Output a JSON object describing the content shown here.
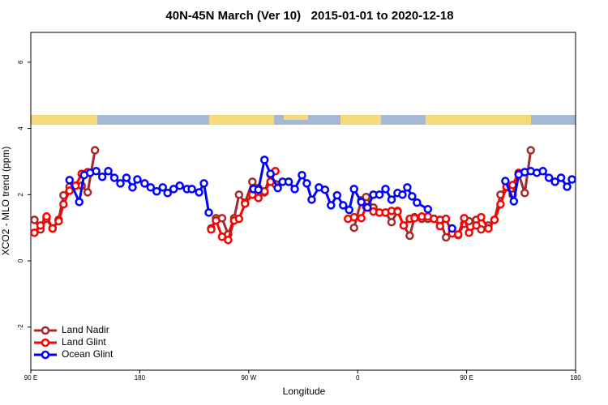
{
  "chart_data": {
    "type": "line",
    "title": "40N-45N March (Ver 10)   2015-01-01 to 2020-12-18",
    "x_label": "Longitude",
    "y_label": "XCO2 - MLO trend (ppm)",
    "xlim": [
      90,
      540
    ],
    "xticks": [
      {
        "value": 90,
        "label": "90 E"
      },
      {
        "value": 180,
        "label": "180"
      },
      {
        "value": 270,
        "label": "90 W"
      },
      {
        "value": 360,
        "label": "0"
      },
      {
        "value": 450,
        "label": "90 E"
      },
      {
        "value": 540,
        "label": "180"
      }
    ],
    "ylim": [
      -3.3,
      6.9
    ],
    "yticks": [
      -2,
      0,
      2,
      4,
      6
    ],
    "legend": "bottom-left",
    "series": [
      {
        "name": "Land Nadir",
        "color": "#a52a2a",
        "x": [
          93,
          98,
          103,
          108,
          113,
          117,
          122,
          127,
          132,
          137,
          143,
          190,
          239,
          243,
          248,
          253,
          258,
          262,
          267,
          273,
          278,
          283,
          288,
          292,
          320,
          357,
          363,
          367,
          373,
          378,
          383,
          388,
          393,
          398,
          403,
          407,
          413,
          418,
          423,
          428,
          433,
          438,
          443,
          448,
          452,
          458,
          462,
          468,
          473,
          478,
          483,
          488,
          493,
          498,
          503
        ],
        "values": [
          1.24,
          0.95,
          1.27,
          0.98,
          1.24,
          1.98,
          2.24,
          2.27,
          2.27,
          2.07,
          3.34,
          null,
          0.98,
          1.29,
          1.29,
          0.8,
          1.29,
          2.0,
          1.76,
          2.39,
          2.2,
          2.07,
          2.61,
          2.32,
          null,
          1.0,
          1.83,
          1.93,
          1.61,
          1.46,
          1.46,
          1.17,
          1.51,
          1.07,
          0.76,
          1.32,
          1.27,
          1.27,
          1.27,
          1.24,
          0.71,
          0.85,
          0.78,
          1.12,
          1.2,
          1.24,
          0.95,
          1.07,
          1.24,
          2.0,
          2.22,
          2.0,
          2.63,
          2.05,
          3.34
        ]
      },
      {
        "name": "Land Glint",
        "color": "#ff0000",
        "x": [
          93,
          98,
          103,
          108,
          113,
          117,
          122,
          127,
          132,
          137,
          145,
          239,
          243,
          248,
          253,
          258,
          262,
          267,
          273,
          278,
          283,
          288,
          292,
          320,
          352,
          357,
          363,
          367,
          373,
          378,
          383,
          388,
          393,
          398,
          403,
          407,
          413,
          418,
          423,
          428,
          433,
          438,
          443,
          448,
          452,
          458,
          462,
          468,
          473,
          478,
          483,
          488,
          493,
          498
        ],
        "values": [
          0.85,
          1.07,
          1.34,
          0.98,
          1.2,
          1.71,
          2.12,
          2.27,
          2.63,
          2.68,
          null,
          0.95,
          1.22,
          0.73,
          0.63,
          1.22,
          1.27,
          1.73,
          2.0,
          1.9,
          2.1,
          2.39,
          2.71,
          null,
          1.27,
          1.32,
          1.29,
          1.63,
          1.49,
          1.46,
          1.46,
          1.51,
          1.49,
          1.07,
          1.27,
          1.29,
          1.34,
          1.34,
          1.27,
          1.05,
          1.27,
          0.83,
          0.8,
          1.29,
          0.85,
          1.07,
          1.32,
          0.98,
          1.24,
          1.71,
          2.24,
          2.29,
          2.66,
          2.68
        ]
      },
      {
        "name": "Ocean Glint",
        "color": "#0000ff",
        "x": [
          122,
          130,
          134,
          139,
          144,
          149,
          154,
          159,
          164,
          169,
          174,
          178,
          184,
          189,
          194,
          199,
          203,
          208,
          213,
          219,
          223,
          229,
          233,
          237,
          255,
          274,
          278,
          283,
          288,
          294,
          298,
          303,
          308,
          314,
          318,
          322,
          328,
          333,
          338,
          343,
          348,
          353,
          357,
          363,
          368,
          373,
          378,
          383,
          388,
          393,
          397,
          401,
          405,
          409,
          418,
          428,
          438,
          460,
          482,
          489,
          493,
          498,
          503,
          508,
          513,
          518,
          523,
          528,
          533,
          537
        ],
        "values": [
          2.44,
          1.78,
          2.59,
          2.66,
          2.71,
          2.54,
          2.71,
          2.51,
          2.34,
          2.51,
          2.22,
          2.46,
          2.34,
          2.22,
          2.1,
          2.22,
          2.05,
          2.17,
          2.27,
          2.17,
          2.17,
          2.07,
          2.34,
          1.46,
          null,
          2.17,
          2.15,
          3.05,
          2.63,
          2.2,
          2.39,
          2.39,
          2.17,
          2.59,
          2.34,
          1.85,
          2.22,
          2.15,
          1.68,
          1.98,
          1.68,
          1.54,
          2.17,
          1.78,
          1.61,
          2.0,
          2.0,
          2.17,
          1.85,
          2.05,
          2.0,
          2.22,
          1.95,
          1.76,
          1.56,
          null,
          0.98,
          null,
          2.41,
          1.8,
          2.61,
          2.68,
          2.71,
          2.66,
          2.71,
          2.51,
          2.39,
          2.51,
          2.24,
          2.46
        ]
      }
    ]
  }
}
